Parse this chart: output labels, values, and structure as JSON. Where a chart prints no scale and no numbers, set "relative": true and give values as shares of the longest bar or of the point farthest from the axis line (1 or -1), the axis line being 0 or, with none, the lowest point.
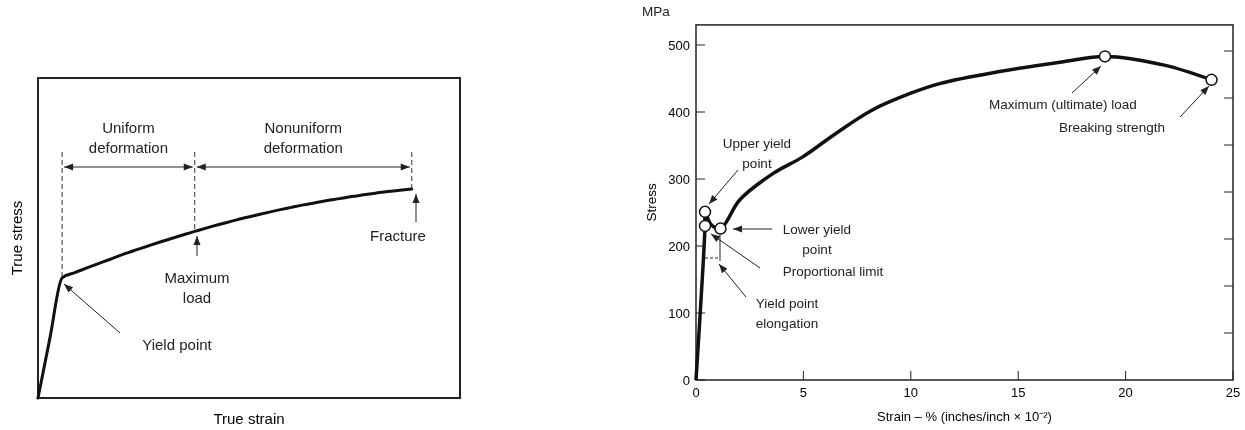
{
  "chart_data": [
    {
      "type": "line",
      "relative": true,
      "xlabel": "True strain",
      "ylabel": "True stress",
      "color": "#111111",
      "line_style": "solid",
      "categories": [
        null,
        null,
        null,
        null,
        null,
        null,
        null,
        null,
        null,
        null,
        null,
        null,
        null,
        null,
        null,
        null,
        null,
        null,
        null,
        null,
        null,
        null,
        null,
        null,
        null,
        null,
        null,
        null,
        null,
        null,
        null,
        null,
        null,
        null,
        null,
        null
      ],
      "values": [
        0,
        0.29,
        0.575,
        0.599,
        0.621,
        0.643,
        0.664,
        0.686,
        0.706,
        0.725,
        0.744,
        0.762,
        0.78,
        0.797,
        0.814,
        0.83,
        0.845,
        0.86,
        0.873,
        0.887,
        0.9,
        0.912,
        0.924,
        0.934,
        0.945,
        0.954,
        0.964,
        0.972,
        0.98,
        0.988,
        0.994,
        1,
        null,
        null,
        null,
        null
      ],
      "annotations": [
        "Uniform\ndeformation",
        "Nonuniform\ndeformation",
        "Yield point",
        "Maximum\nload",
        "Fracture"
      ]
    },
    {
      "type": "line",
      "xlabel": "Strain – % (inches/inch × 10⁻²)",
      "ylabel": "Stress",
      "xlim": [
        0,
        25
      ],
      "xticks": [
        0,
        5,
        10,
        15,
        20,
        25
      ],
      "ylim": [
        0,
        530
      ],
      "yticks": [
        0,
        100,
        200,
        300,
        400,
        500
      ],
      "series": [
        {
          "type": "line",
          "color": "#111111",
          "marker": "none",
          "x": [
            0,
            0.42,
            0.42,
            0.7,
            1.14,
            2.04,
            3.58,
            4.97,
            6.51,
            8.21,
            10,
            11.3,
            14.07,
            17.1,
            19.04,
            21.8,
            24
          ],
          "values": [
            0,
            230,
            251,
            232,
            226,
            269,
            308,
            333,
            368,
            403,
            428,
            442,
            460,
            475,
            483,
            470,
            448
          ]
        },
        {
          "type": "scatter",
          "color": "#111111",
          "marker": "circle",
          "x": [
            0.42,
            0.42,
            1.14,
            19.04,
            24
          ],
          "values": [
            251,
            230,
            226,
            483,
            448
          ]
        }
      ],
      "annotations": [
        "MPa",
        "Upper yield\npoint",
        "Lower yield\npoint",
        "Proportional limit",
        "Yield point\nelongation",
        "Maximum (ultimate) load",
        "Breaking strength"
      ]
    }
  ]
}
